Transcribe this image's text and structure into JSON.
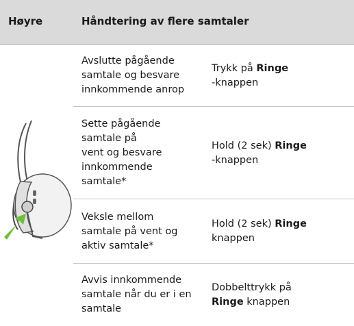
{
  "table": {
    "header": [
      "Høyre",
      "Håndtering av flere samtaler"
    ],
    "rows": [
      {
        "action": [
          "Avslutte pågående",
          "samtale og besvare",
          "innkommende anrop"
        ],
        "control": [
          [
            {
              "text": "Trykk på "
            },
            {
              "text": "Ringe",
              "bold": true
            }
          ],
          [
            {
              "text": "-knappen"
            }
          ]
        ]
      },
      {
        "action": [
          "Sette pågående",
          "samtale på",
          "vent og besvare",
          "innkommende",
          "samtale*"
        ],
        "control": [
          [
            {
              "text": "Hold (2 sek) "
            },
            {
              "text": "Ringe",
              "bold": true
            }
          ],
          [
            {
              "text": "-knappen"
            }
          ]
        ]
      },
      {
        "action": [
          "Veksle mellom",
          "samtale på vent og",
          "aktiv samtale*"
        ],
        "control": [
          [
            {
              "text": "Hold (2 sek) "
            },
            {
              "text": "Ringe",
              "bold": true
            }
          ],
          [
            {
              "text": "knappen"
            }
          ]
        ]
      },
      {
        "action": [
          "Avvis innkommende",
          "samtale når du er i en",
          "samtale"
        ],
        "control": [
          [
            {
              "text": "Dobbelttrykk på"
            }
          ],
          [
            {
              "text": "Ringe",
              "bold": true
            },
            {
              "text": " knappen"
            }
          ]
        ]
      }
    ]
  }
}
